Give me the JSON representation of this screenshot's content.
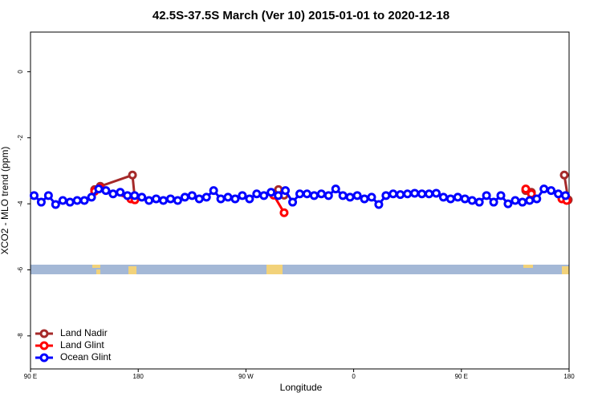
{
  "chart_data": {
    "type": "line",
    "title": "42.5S-37.5S March (Ver 10)   2015-01-01 to 2020-12-18",
    "x_label": "Longitude",
    "y_label": "XCO2 - MLO trend (ppm)",
    "xlim": [
      90,
      540
    ],
    "xticks": [
      {
        "value": 90,
        "label": "90 E"
      },
      {
        "value": 180,
        "label": "180"
      },
      {
        "value": 270,
        "label": "90 W"
      },
      {
        "value": 360,
        "label": "0"
      },
      {
        "value": 450,
        "label": "90 E"
      },
      {
        "value": 540,
        "label": "180"
      }
    ],
    "ylim": [
      -9,
      1.2
    ],
    "yticks": [
      0,
      -2,
      -4,
      -6,
      -8
    ],
    "legend": "bottom-left",
    "series": [
      {
        "name": "Land Nadir",
        "color": "#a52a2a",
        "x": [
          143.6,
          148.3,
          175.2,
          177.2,
          null,
          297.2,
          301.9,
          null,
          503.8,
          508.5,
          null,
          536,
          539.3
        ],
        "values": [
          -3.57,
          -3.47,
          -3.13,
          -3.86,
          null,
          -3.57,
          -3.74,
          null,
          -3.6,
          -3.65,
          null,
          -3.13,
          -3.88
        ]
      },
      {
        "name": "Land Glint",
        "color": "#ff0000",
        "x": [
          143.6,
          148.3,
          173.8,
          177.2,
          null,
          293.2,
          301.9,
          null,
          503.8,
          508.5,
          null,
          534,
          538
        ],
        "values": [
          -3.62,
          -3.52,
          -3.85,
          -3.88,
          null,
          -3.74,
          -4.27,
          null,
          -3.55,
          -3.7,
          null,
          -3.85,
          -3.9
        ]
      },
      {
        "name": "Ocean Glint",
        "color": "#0000ff",
        "x": [
          93,
          99,
          105,
          111,
          117,
          123,
          129,
          135,
          141,
          147,
          153,
          159,
          165,
          171,
          177,
          183,
          189,
          195,
          201,
          207,
          213,
          219,
          225,
          231,
          237,
          243,
          249,
          255,
          261,
          267,
          273,
          279,
          285,
          291,
          297,
          303,
          309,
          315,
          321,
          327,
          333,
          339,
          345,
          351,
          357,
          363,
          369,
          375,
          381,
          387,
          393,
          399,
          405,
          411,
          417,
          423,
          429,
          435,
          441,
          447,
          453,
          459,
          465,
          471,
          477,
          483,
          489,
          495,
          501,
          507,
          513,
          519,
          525,
          531,
          537
        ],
        "values": [
          -3.75,
          -3.95,
          -3.75,
          -4.02,
          -3.9,
          -3.95,
          -3.9,
          -3.9,
          -3.8,
          -3.55,
          -3.6,
          -3.7,
          -3.65,
          -3.75,
          -3.75,
          -3.8,
          -3.9,
          -3.85,
          -3.9,
          -3.85,
          -3.9,
          -3.8,
          -3.75,
          -3.85,
          -3.8,
          -3.6,
          -3.85,
          -3.8,
          -3.85,
          -3.75,
          -3.85,
          -3.7,
          -3.75,
          -3.65,
          -3.75,
          -3.6,
          -3.95,
          -3.7,
          -3.7,
          -3.75,
          -3.7,
          -3.75,
          -3.55,
          -3.75,
          -3.8,
          -3.75,
          -3.85,
          -3.8,
          -4.02,
          -3.75,
          -3.7,
          -3.72,
          -3.7,
          -3.68,
          -3.7,
          -3.7,
          -3.68,
          -3.8,
          -3.85,
          -3.8,
          -3.85,
          -3.9,
          -3.95,
          -3.75,
          -3.95,
          -3.75,
          -4.0,
          -3.9,
          -3.95,
          -3.9,
          -3.85,
          -3.55,
          -3.6,
          -3.7,
          -3.75
        ]
      }
    ]
  }
}
